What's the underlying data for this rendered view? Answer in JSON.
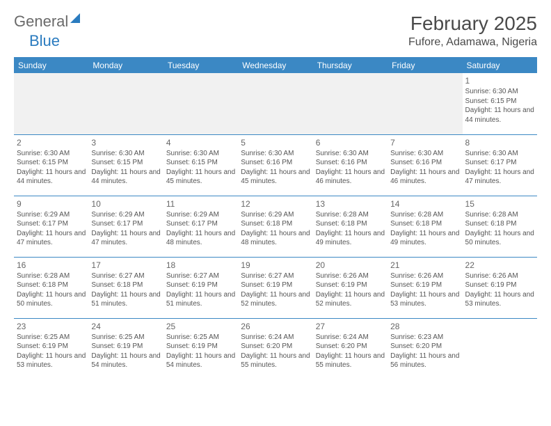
{
  "logo": {
    "text1": "General",
    "text2": "Blue",
    "icon_color": "#2a7bbf"
  },
  "title": "February 2025",
  "location": "Fufore, Adamawa, Nigeria",
  "header_bg": "#3b88c4",
  "header_text_color": "#ffffff",
  "border_color": "#3b88c4",
  "empty_bg": "#f1f1f1",
  "text_color": "#555555",
  "day_headers": [
    "Sunday",
    "Monday",
    "Tuesday",
    "Wednesday",
    "Thursday",
    "Friday",
    "Saturday"
  ],
  "weeks": [
    [
      null,
      null,
      null,
      null,
      null,
      null,
      {
        "n": "1",
        "sunrise": "6:30 AM",
        "sunset": "6:15 PM",
        "daylight": "11 hours and 44 minutes."
      }
    ],
    [
      {
        "n": "2",
        "sunrise": "6:30 AM",
        "sunset": "6:15 PM",
        "daylight": "11 hours and 44 minutes."
      },
      {
        "n": "3",
        "sunrise": "6:30 AM",
        "sunset": "6:15 PM",
        "daylight": "11 hours and 44 minutes."
      },
      {
        "n": "4",
        "sunrise": "6:30 AM",
        "sunset": "6:15 PM",
        "daylight": "11 hours and 45 minutes."
      },
      {
        "n": "5",
        "sunrise": "6:30 AM",
        "sunset": "6:16 PM",
        "daylight": "11 hours and 45 minutes."
      },
      {
        "n": "6",
        "sunrise": "6:30 AM",
        "sunset": "6:16 PM",
        "daylight": "11 hours and 46 minutes."
      },
      {
        "n": "7",
        "sunrise": "6:30 AM",
        "sunset": "6:16 PM",
        "daylight": "11 hours and 46 minutes."
      },
      {
        "n": "8",
        "sunrise": "6:30 AM",
        "sunset": "6:17 PM",
        "daylight": "11 hours and 47 minutes."
      }
    ],
    [
      {
        "n": "9",
        "sunrise": "6:29 AM",
        "sunset": "6:17 PM",
        "daylight": "11 hours and 47 minutes."
      },
      {
        "n": "10",
        "sunrise": "6:29 AM",
        "sunset": "6:17 PM",
        "daylight": "11 hours and 47 minutes."
      },
      {
        "n": "11",
        "sunrise": "6:29 AM",
        "sunset": "6:17 PM",
        "daylight": "11 hours and 48 minutes."
      },
      {
        "n": "12",
        "sunrise": "6:29 AM",
        "sunset": "6:18 PM",
        "daylight": "11 hours and 48 minutes."
      },
      {
        "n": "13",
        "sunrise": "6:28 AM",
        "sunset": "6:18 PM",
        "daylight": "11 hours and 49 minutes."
      },
      {
        "n": "14",
        "sunrise": "6:28 AM",
        "sunset": "6:18 PM",
        "daylight": "11 hours and 49 minutes."
      },
      {
        "n": "15",
        "sunrise": "6:28 AM",
        "sunset": "6:18 PM",
        "daylight": "11 hours and 50 minutes."
      }
    ],
    [
      {
        "n": "16",
        "sunrise": "6:28 AM",
        "sunset": "6:18 PM",
        "daylight": "11 hours and 50 minutes."
      },
      {
        "n": "17",
        "sunrise": "6:27 AM",
        "sunset": "6:18 PM",
        "daylight": "11 hours and 51 minutes."
      },
      {
        "n": "18",
        "sunrise": "6:27 AM",
        "sunset": "6:19 PM",
        "daylight": "11 hours and 51 minutes."
      },
      {
        "n": "19",
        "sunrise": "6:27 AM",
        "sunset": "6:19 PM",
        "daylight": "11 hours and 52 minutes."
      },
      {
        "n": "20",
        "sunrise": "6:26 AM",
        "sunset": "6:19 PM",
        "daylight": "11 hours and 52 minutes."
      },
      {
        "n": "21",
        "sunrise": "6:26 AM",
        "sunset": "6:19 PM",
        "daylight": "11 hours and 53 minutes."
      },
      {
        "n": "22",
        "sunrise": "6:26 AM",
        "sunset": "6:19 PM",
        "daylight": "11 hours and 53 minutes."
      }
    ],
    [
      {
        "n": "23",
        "sunrise": "6:25 AM",
        "sunset": "6:19 PM",
        "daylight": "11 hours and 53 minutes."
      },
      {
        "n": "24",
        "sunrise": "6:25 AM",
        "sunset": "6:19 PM",
        "daylight": "11 hours and 54 minutes."
      },
      {
        "n": "25",
        "sunrise": "6:25 AM",
        "sunset": "6:19 PM",
        "daylight": "11 hours and 54 minutes."
      },
      {
        "n": "26",
        "sunrise": "6:24 AM",
        "sunset": "6:20 PM",
        "daylight": "11 hours and 55 minutes."
      },
      {
        "n": "27",
        "sunrise": "6:24 AM",
        "sunset": "6:20 PM",
        "daylight": "11 hours and 55 minutes."
      },
      {
        "n": "28",
        "sunrise": "6:23 AM",
        "sunset": "6:20 PM",
        "daylight": "11 hours and 56 minutes."
      },
      null
    ]
  ]
}
